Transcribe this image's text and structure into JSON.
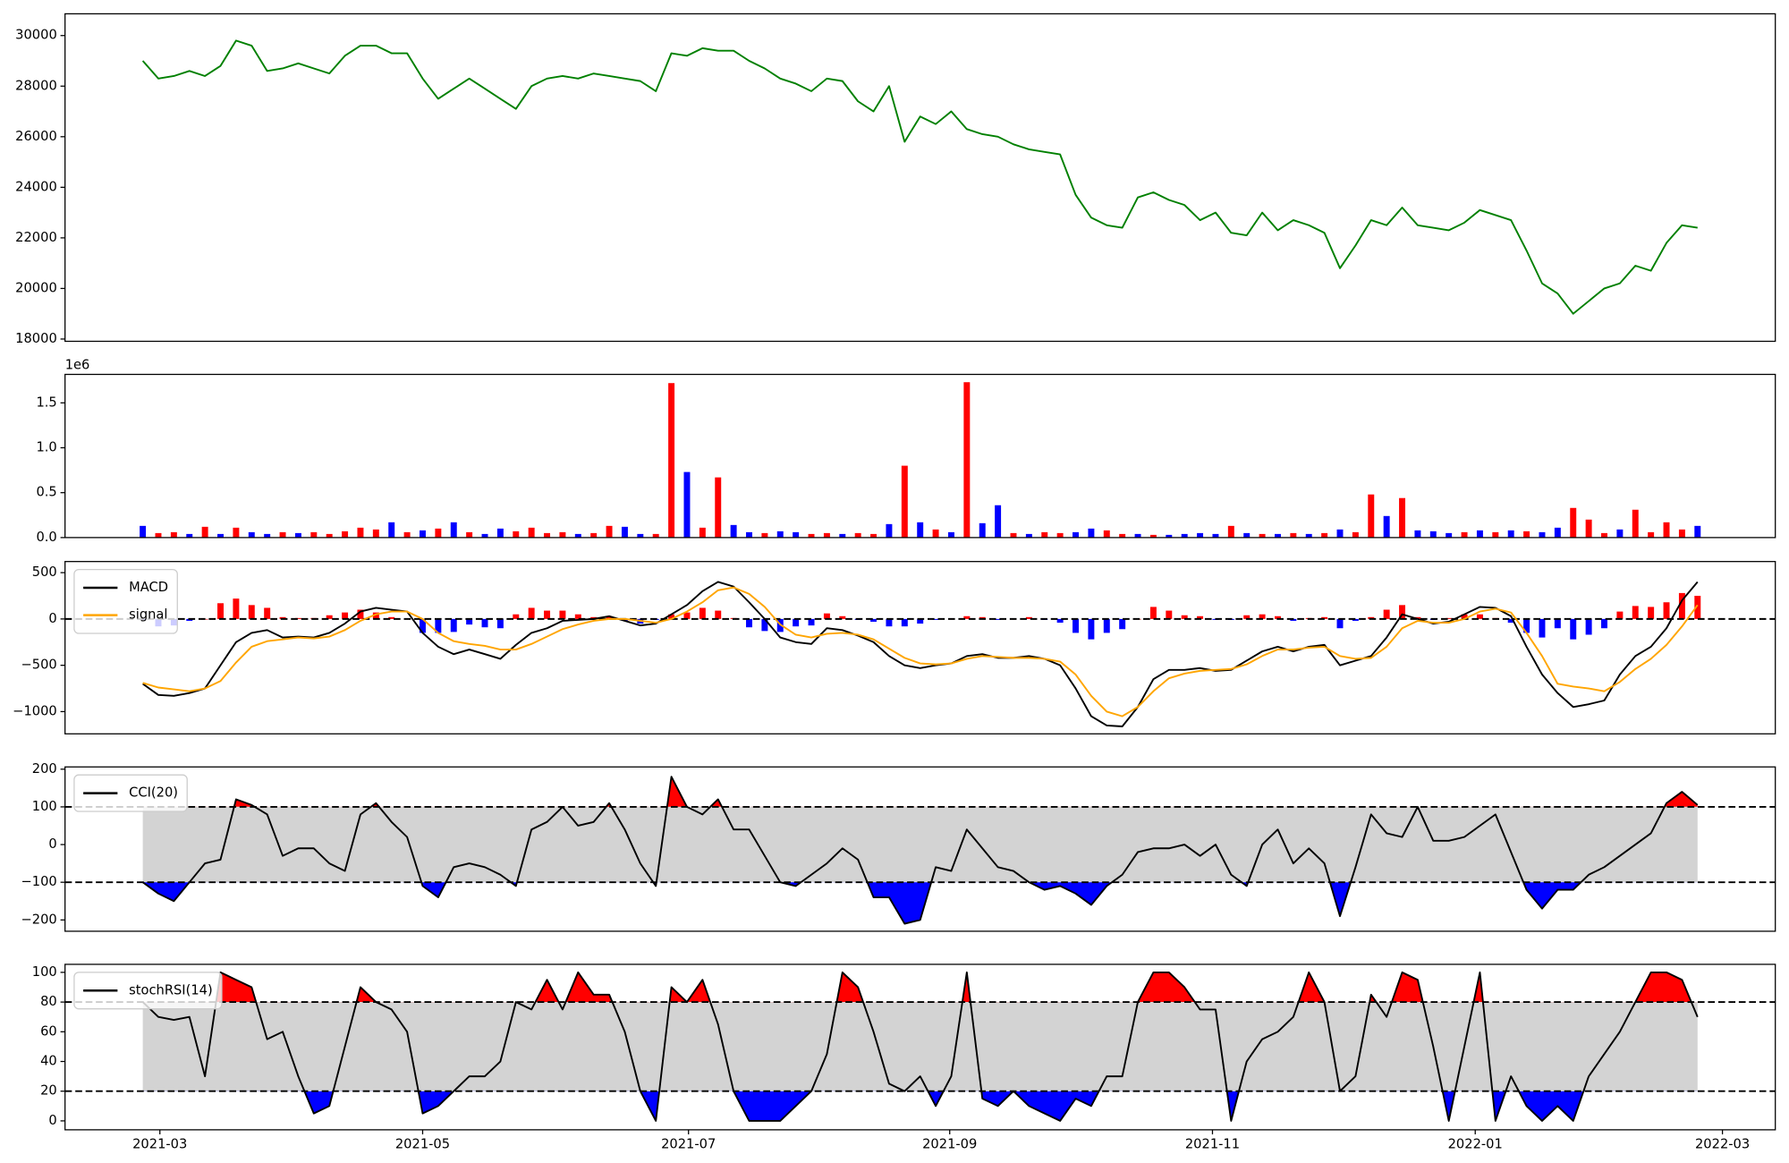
{
  "chart_data": [
    {
      "type": "line",
      "series": [
        {
          "color": "#008000",
          "values": [
            29000,
            28300,
            28400,
            28600,
            28400,
            28800,
            29800,
            29600,
            28600,
            28700,
            28900,
            28700,
            28500,
            29200,
            29600,
            29600,
            29300,
            29300,
            28300,
            27500,
            27900,
            28300,
            27900,
            27500,
            27100,
            28000,
            28300,
            28400,
            28300,
            28500,
            28400,
            28300,
            28200,
            27800,
            29300,
            29200,
            29500,
            29400,
            29400,
            29000,
            28700,
            28300,
            28100,
            27800,
            28300,
            28200,
            27400,
            27000,
            28000,
            25800,
            26800,
            26500,
            27000,
            26300,
            26100,
            26000,
            25700,
            25500,
            25400,
            25300,
            23700,
            22800,
            22500,
            22400,
            23600,
            23800,
            23500,
            23300,
            22700,
            23000,
            22200,
            22100,
            23000,
            22300,
            22700,
            22500,
            22200,
            20800,
            21700,
            22700,
            22500,
            23200,
            22500,
            22400,
            22300,
            22600,
            23100,
            22900,
            22700,
            21500,
            20200,
            19800,
            19000,
            19500,
            20000,
            20200,
            20900,
            20700,
            21800,
            22500,
            22400
          ]
        }
      ],
      "ylim": [
        17910,
        30860
      ],
      "yticks": [
        18000,
        20000,
        22000,
        24000,
        26000,
        28000,
        30000
      ]
    },
    {
      "type": "bar",
      "offset_label": "1e6",
      "values": [
        130000,
        50000,
        60000,
        40000,
        120000,
        40000,
        110000,
        60000,
        40000,
        60000,
        50000,
        60000,
        40000,
        70000,
        110000,
        90000,
        170000,
        60000,
        80000,
        100000,
        170000,
        60000,
        40000,
        100000,
        70000,
        110000,
        50000,
        60000,
        40000,
        50000,
        130000,
        120000,
        40000,
        40000,
        1720000,
        730000,
        110000,
        670000,
        140000,
        60000,
        50000,
        70000,
        60000,
        40000,
        50000,
        40000,
        50000,
        40000,
        150000,
        800000,
        170000,
        90000,
        60000,
        1730000,
        160000,
        360000,
        50000,
        40000,
        60000,
        50000,
        60000,
        100000,
        80000,
        40000,
        40000,
        30000,
        30000,
        40000,
        50000,
        40000,
        130000,
        50000,
        40000,
        40000,
        50000,
        40000,
        50000,
        90000,
        60000,
        480000,
        240000,
        440000,
        80000,
        70000,
        50000,
        60000,
        80000,
        60000,
        80000,
        70000,
        60000,
        110000,
        330000,
        200000,
        50000,
        90000,
        310000,
        60000,
        170000,
        90000,
        130000
      ],
      "colors": [
        "blue",
        "red",
        "red",
        "blue",
        "red",
        "blue",
        "red",
        "blue",
        "blue",
        "red",
        "blue",
        "red",
        "red",
        "red",
        "red",
        "red",
        "blue",
        "red",
        "blue",
        "red",
        "blue",
        "red",
        "blue",
        "blue",
        "red",
        "red",
        "red",
        "red",
        "blue",
        "red",
        "red",
        "blue",
        "blue",
        "red",
        "red",
        "blue",
        "red",
        "red",
        "blue",
        "blue",
        "red",
        "blue",
        "blue",
        "red",
        "red",
        "blue",
        "red",
        "red",
        "blue",
        "red",
        "blue",
        "red",
        "blue",
        "red",
        "blue",
        "blue",
        "red",
        "blue",
        "red",
        "red",
        "blue",
        "blue",
        "red",
        "red",
        "blue",
        "red",
        "blue",
        "blue",
        "blue",
        "blue",
        "red",
        "blue",
        "red",
        "blue",
        "red",
        "blue",
        "red",
        "blue",
        "red",
        "red",
        "blue",
        "red",
        "blue",
        "blue",
        "blue",
        "red",
        "blue",
        "red",
        "blue",
        "red",
        "blue",
        "blue",
        "red",
        "red",
        "red",
        "blue",
        "red",
        "red",
        "red",
        "red",
        "blue"
      ],
      "ylim": [
        0,
        1817000
      ],
      "yticks": [
        {
          "value": 0,
          "label": "0.0"
        },
        {
          "value": 500000,
          "label": "0.5"
        },
        {
          "value": 1000000,
          "label": "1.0"
        },
        {
          "value": 1500000,
          "label": "1.5"
        }
      ]
    },
    {
      "type": "line",
      "series": [
        {
          "name": "MACD",
          "color": "#000000",
          "values": [
            -700,
            -820,
            -830,
            -800,
            -750,
            -500,
            -250,
            -150,
            -120,
            -200,
            -190,
            -200,
            -150,
            -50,
            80,
            120,
            100,
            80,
            -150,
            -300,
            -380,
            -330,
            -380,
            -430,
            -280,
            -150,
            -100,
            -20,
            -10,
            0,
            30,
            -20,
            -70,
            -50,
            50,
            150,
            300,
            400,
            350,
            180,
            0,
            -200,
            -250,
            -270,
            -100,
            -120,
            -180,
            -250,
            -400,
            -500,
            -530,
            -500,
            -480,
            -400,
            -380,
            -420,
            -420,
            -400,
            -430,
            -500,
            -750,
            -1050,
            -1150,
            -1160,
            -950,
            -650,
            -550,
            -550,
            -530,
            -560,
            -550,
            -450,
            -350,
            -300,
            -350,
            -300,
            -280,
            -500,
            -450,
            -400,
            -200,
            50,
            0,
            -50,
            -30,
            50,
            130,
            120,
            30,
            -300,
            -600,
            -800,
            -950,
            -920,
            -880,
            -600,
            -400,
            -300,
            -100,
            200,
            400
          ]
        },
        {
          "name": "signal",
          "color": "orange",
          "values": [
            -690,
            -740,
            -760,
            -780,
            -750,
            -670,
            -470,
            -300,
            -240,
            -220,
            -200,
            -210,
            -190,
            -120,
            -20,
            50,
            80,
            80,
            0,
            -150,
            -240,
            -270,
            -290,
            -330,
            -330,
            -270,
            -190,
            -110,
            -60,
            -20,
            0,
            0,
            -20,
            -40,
            0,
            80,
            180,
            310,
            340,
            270,
            130,
            -60,
            -170,
            -200,
            -160,
            -150,
            -170,
            -220,
            -320,
            -420,
            -480,
            -490,
            -480,
            -430,
            -400,
            -410,
            -420,
            -420,
            -430,
            -460,
            -600,
            -830,
            -1000,
            -1050,
            -950,
            -780,
            -640,
            -590,
            -560,
            -550,
            -540,
            -490,
            -400,
            -330,
            -330,
            -310,
            -300,
            -400,
            -430,
            -420,
            -300,
            -100,
            -20,
            -40,
            -40,
            0,
            80,
            110,
            70,
            -150,
            -400,
            -700,
            -730,
            -750,
            -780,
            -680,
            -540,
            -430,
            -280,
            -80,
            150
          ]
        },
        {
          "type": "bar",
          "positive_color": "red",
          "negative_color": "blue",
          "values": [
            -10,
            -80,
            -70,
            -20,
            0,
            170,
            220,
            150,
            120,
            20,
            10,
            10,
            40,
            70,
            100,
            70,
            20,
            0,
            -150,
            -150,
            -140,
            -60,
            -90,
            -100,
            50,
            120,
            90,
            90,
            50,
            20,
            30,
            -20,
            -50,
            -10,
            50,
            70,
            120,
            90,
            10,
            -90,
            -130,
            -140,
            -80,
            -70,
            60,
            30,
            -10,
            -30,
            -80,
            -80,
            -50,
            -10,
            0,
            30,
            20,
            -10,
            0,
            20,
            -10,
            -40,
            -150,
            -220,
            -150,
            -110,
            0,
            130,
            90,
            40,
            30,
            -10,
            -10,
            40,
            50,
            30,
            -20,
            10,
            20,
            -100,
            -20,
            20,
            100,
            150,
            20,
            -10,
            10,
            50,
            50,
            10,
            -40,
            -150,
            -200,
            -100,
            -220,
            -170,
            -100,
            80,
            140,
            130,
            180,
            280,
            250
          ]
        }
      ],
      "hlines": [
        0
      ],
      "legend": "upper left",
      "ylim": [
        -1240,
        620
      ],
      "yticks": [
        {
          "value": -1000,
          "label": "−1000"
        },
        {
          "value": -500,
          "label": "−500"
        },
        0,
        500
      ]
    },
    {
      "type": "band",
      "series": [
        {
          "name": "CCI(20)",
          "color": "#000000",
          "values": [
            -100,
            -130,
            -150,
            -100,
            -50,
            -40,
            120,
            105,
            80,
            -30,
            -10,
            -10,
            -50,
            -70,
            80,
            110,
            60,
            20,
            -110,
            -140,
            -60,
            -50,
            -60,
            -80,
            -110,
            40,
            60,
            100,
            50,
            60,
            110,
            40,
            -50,
            -110,
            180,
            100,
            80,
            120,
            40,
            40,
            -30,
            -100,
            -110,
            -80,
            -50,
            -10,
            -40,
            -140,
            -140,
            -210,
            -200,
            -60,
            -70,
            40,
            -10,
            -60,
            -70,
            -100,
            -120,
            -110,
            -130,
            -160,
            -110,
            -80,
            -20,
            -10,
            -10,
            0,
            -30,
            0,
            -80,
            -110,
            0,
            40,
            -50,
            -10,
            -50,
            -190,
            -60,
            80,
            30,
            20,
            100,
            10,
            10,
            20,
            50,
            80,
            -20,
            -120,
            -170,
            -120,
            -120,
            -80,
            -60,
            -30,
            0,
            30,
            110,
            140,
            105
          ]
        }
      ],
      "bands": [
        -100,
        100
      ],
      "band_color": "lightgray",
      "above_color": "red",
      "below_color": "blue",
      "legend": "upper left",
      "ylim": [
        -230,
        206
      ],
      "yticks": [
        {
          "value": -200,
          "label": "−200"
        },
        {
          "value": -100,
          "label": "−100"
        },
        0,
        100,
        200
      ]
    },
    {
      "type": "band",
      "series": [
        {
          "name": "stochRSI(14)",
          "color": "#000000",
          "values": [
            80,
            70,
            68,
            70,
            30,
            100,
            95,
            90,
            55,
            60,
            30,
            5,
            10,
            50,
            90,
            80,
            75,
            60,
            5,
            10,
            20,
            30,
            30,
            40,
            80,
            75,
            95,
            75,
            100,
            85,
            85,
            60,
            20,
            0,
            90,
            80,
            95,
            65,
            20,
            0,
            0,
            0,
            10,
            20,
            45,
            100,
            90,
            60,
            25,
            20,
            30,
            10,
            30,
            100,
            15,
            10,
            20,
            10,
            5,
            0,
            15,
            10,
            30,
            30,
            80,
            100,
            100,
            90,
            75,
            75,
            0,
            40,
            55,
            60,
            70,
            100,
            80,
            20,
            30,
            85,
            70,
            100,
            95,
            50,
            0,
            50,
            100,
            0,
            30,
            10,
            0,
            10,
            0,
            30,
            45,
            60,
            80,
            100,
            100,
            95,
            70
          ]
        }
      ],
      "bands": [
        20,
        80
      ],
      "band_color": "lightgray",
      "above_color": "red",
      "below_color": "blue",
      "legend": "upper left",
      "ylim": [
        -6,
        105.4
      ],
      "yticks": [
        0,
        20,
        40,
        60,
        80,
        100
      ],
      "categories": [
        null,
        null,
        null,
        null,
        null,
        null,
        null,
        null,
        null,
        null,
        null,
        null,
        null,
        null,
        null,
        null,
        null,
        null,
        null,
        null,
        null,
        null,
        null,
        null,
        null,
        null,
        null,
        null,
        null,
        null,
        null,
        null,
        null,
        null,
        null,
        null,
        null,
        null,
        null,
        null,
        null,
        null,
        null,
        null,
        null,
        null,
        null,
        null,
        null,
        null,
        null,
        null,
        null,
        null,
        null,
        null,
        null,
        null,
        null,
        null,
        null,
        null,
        null,
        null,
        null,
        null,
        null,
        null,
        null,
        null,
        null,
        null,
        null,
        null,
        null,
        null,
        null,
        null,
        null,
        null,
        null,
        null,
        null,
        null,
        null,
        null,
        null,
        null,
        null,
        null,
        null,
        null,
        null,
        null,
        null,
        null,
        null,
        null,
        null,
        null,
        null
      ],
      "xlim": [
        -5,
        105
      ],
      "xticks": [
        {
          "value": 1.1,
          "label": "2021-03"
        },
        {
          "value": 18,
          "label": "2021-05"
        },
        {
          "value": 35.1,
          "label": "2021-07"
        },
        {
          "value": 51.9,
          "label": "2021-09"
        },
        {
          "value": 68.8,
          "label": "2021-11"
        },
        {
          "value": 85.7,
          "label": "2022-01"
        },
        {
          "value": 101.6,
          "label": "2022-03"
        }
      ]
    }
  ]
}
